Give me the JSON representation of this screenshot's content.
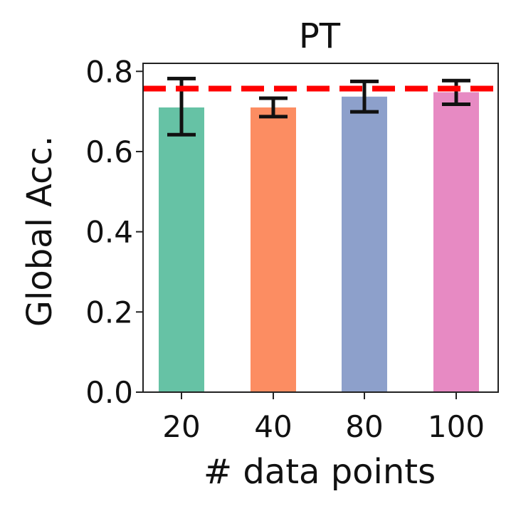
{
  "chart_data": {
    "type": "bar",
    "title": "PT",
    "xlabel": "# data points",
    "ylabel": "Global Acc.",
    "categories": [
      "20",
      "40",
      "80",
      "100"
    ],
    "values": [
      0.71,
      0.71,
      0.737,
      0.748
    ],
    "error_low": [
      0.642,
      0.687,
      0.699,
      0.718
    ],
    "error_high": [
      0.782,
      0.733,
      0.775,
      0.777
    ],
    "bar_colors": [
      "#66c2a5",
      "#fc8d62",
      "#8da0cb",
      "#e78ac3"
    ],
    "reference_line": {
      "value": 0.757,
      "color": "#ff0000",
      "style": "dashed"
    },
    "ylim": [
      0,
      0.82
    ],
    "yticks": [
      "0.0",
      "0.2",
      "0.4",
      "0.6",
      "0.8"
    ],
    "ytick_values": [
      0,
      0.2,
      0.4,
      0.6,
      0.8
    ],
    "grid": false,
    "legend": "none"
  }
}
